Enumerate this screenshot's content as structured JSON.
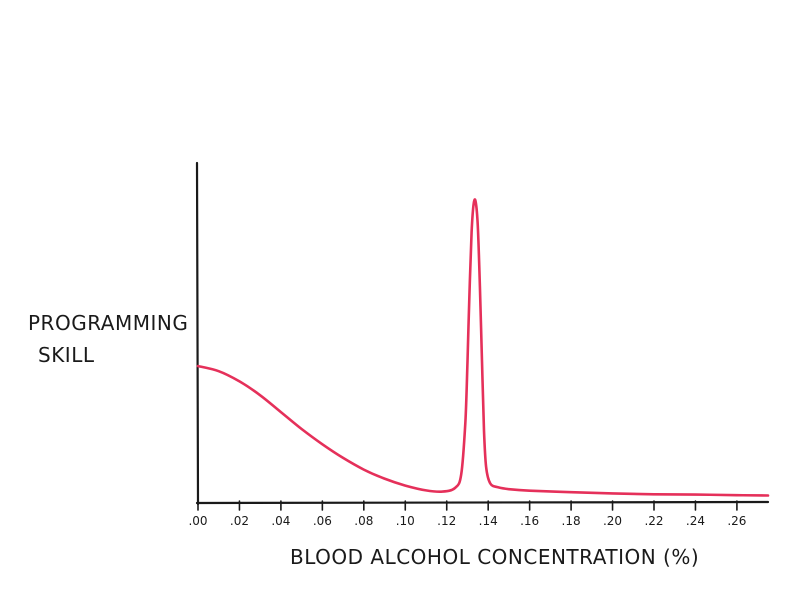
{
  "chart_data": {
    "type": "line",
    "title": "",
    "ylabel_lines": [
      "PROGRAMMING",
      "SKILL"
    ],
    "xlabel": "BLOOD ALCOHOL CONCENTRATION (%)",
    "x_tick_labels": [
      ".00",
      ".02",
      ".04",
      ".06",
      ".08",
      ".10",
      ".12",
      ".14",
      ".16",
      ".18",
      ".20",
      ".22",
      ".24",
      ".26"
    ],
    "x_ticks": [
      0.0,
      0.02,
      0.04,
      0.06,
      0.08,
      0.1,
      0.12,
      0.14,
      0.16,
      0.18,
      0.2,
      0.22,
      0.24,
      0.26
    ],
    "xlim": [
      0.0,
      0.275
    ],
    "ylim": [
      0,
      100
    ],
    "y_ticks_shown": false,
    "grid": false,
    "series_color": "#e5305a",
    "series": [
      {
        "x": [
          0.0,
          0.01,
          0.02,
          0.03,
          0.04,
          0.05,
          0.06,
          0.07,
          0.08,
          0.09,
          0.1,
          0.11,
          0.118,
          0.124,
          0.127,
          0.129,
          0.13,
          0.131,
          0.132,
          0.133,
          0.134,
          0.135,
          0.136,
          0.137,
          0.138,
          0.139,
          0.141,
          0.145,
          0.15,
          0.16,
          0.18,
          0.2,
          0.22,
          0.24,
          0.26,
          0.275
        ],
        "y": [
          43.5,
          41.8,
          38.4,
          33.8,
          28.2,
          22.6,
          17.5,
          13.0,
          9.1,
          6.1,
          3.8,
          2.2,
          1.8,
          3.0,
          7.5,
          25,
          45,
          68,
          88,
          97.5,
          98,
          90,
          70,
          45,
          22,
          10,
          4.5,
          3.2,
          2.6,
          2.1,
          1.6,
          1.2,
          0.9,
          0.8,
          0.6,
          0.5
        ]
      }
    ]
  }
}
